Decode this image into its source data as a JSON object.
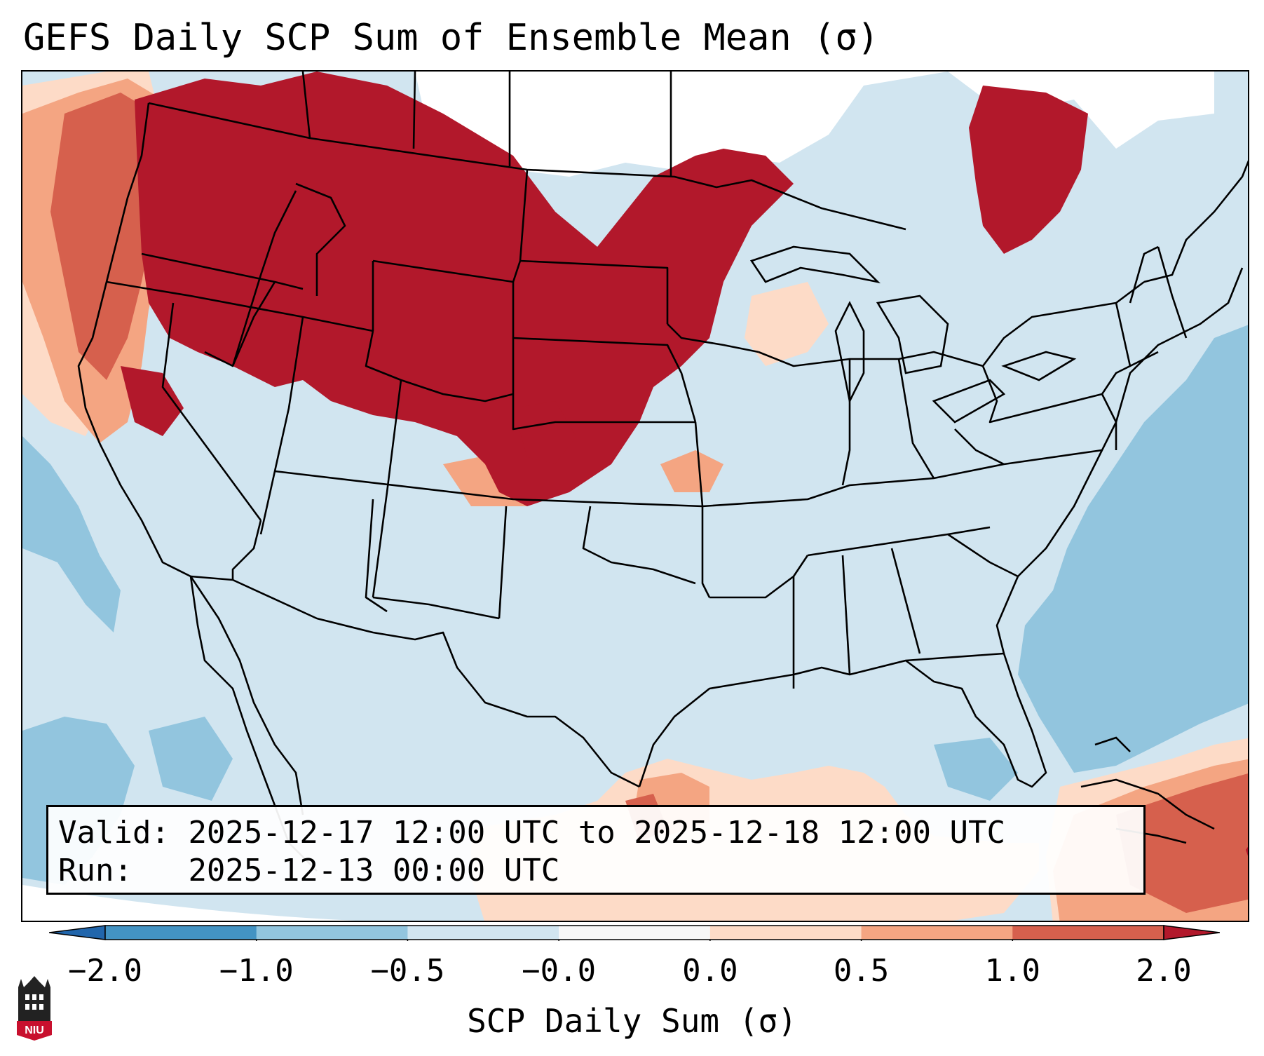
{
  "title": "GEFS Daily SCP Sum of Ensemble Mean (σ)",
  "info": {
    "valid_label": "Valid: ",
    "valid_value": "2025-12-17 12:00 UTC to 2025-12-18 12:00 UTC",
    "run_label": "Run:   ",
    "run_value": "2025-12-13 00:00 UTC"
  },
  "colorbar": {
    "label": "SCP Daily Sum (σ)",
    "ticks": [
      "−2.0",
      "−1.0",
      "−0.5",
      "−0.0",
      "0.0",
      "0.5",
      "1.0",
      "2.0"
    ],
    "bins": [
      {
        "from": -2.0,
        "to": -1.0,
        "color": "#4393c3"
      },
      {
        "from": -1.0,
        "to": -0.5,
        "color": "#92c5de"
      },
      {
        "from": -0.5,
        "to": -0.0,
        "color": "#d1e5f0"
      },
      {
        "from": -0.0,
        "to": 0.0,
        "color": "#f7f7f7"
      },
      {
        "from": 0.0,
        "to": 0.5,
        "color": "#fddbc7"
      },
      {
        "from": 0.5,
        "to": 1.0,
        "color": "#f4a582"
      },
      {
        "from": 1.0,
        "to": 2.0,
        "color": "#d6604d"
      }
    ],
    "under_color": "#2166ac",
    "over_color": "#b2182b"
  },
  "logo": {
    "text": "NIU",
    "color": "#c8102e"
  },
  "colors": {
    "max_red": "#b2182b",
    "mid_red": "#d6604d",
    "light_red": "#f4a582",
    "pale_red": "#fddbc7",
    "pale_blue": "#d1e5f0",
    "light_blue": "#92c5de"
  }
}
